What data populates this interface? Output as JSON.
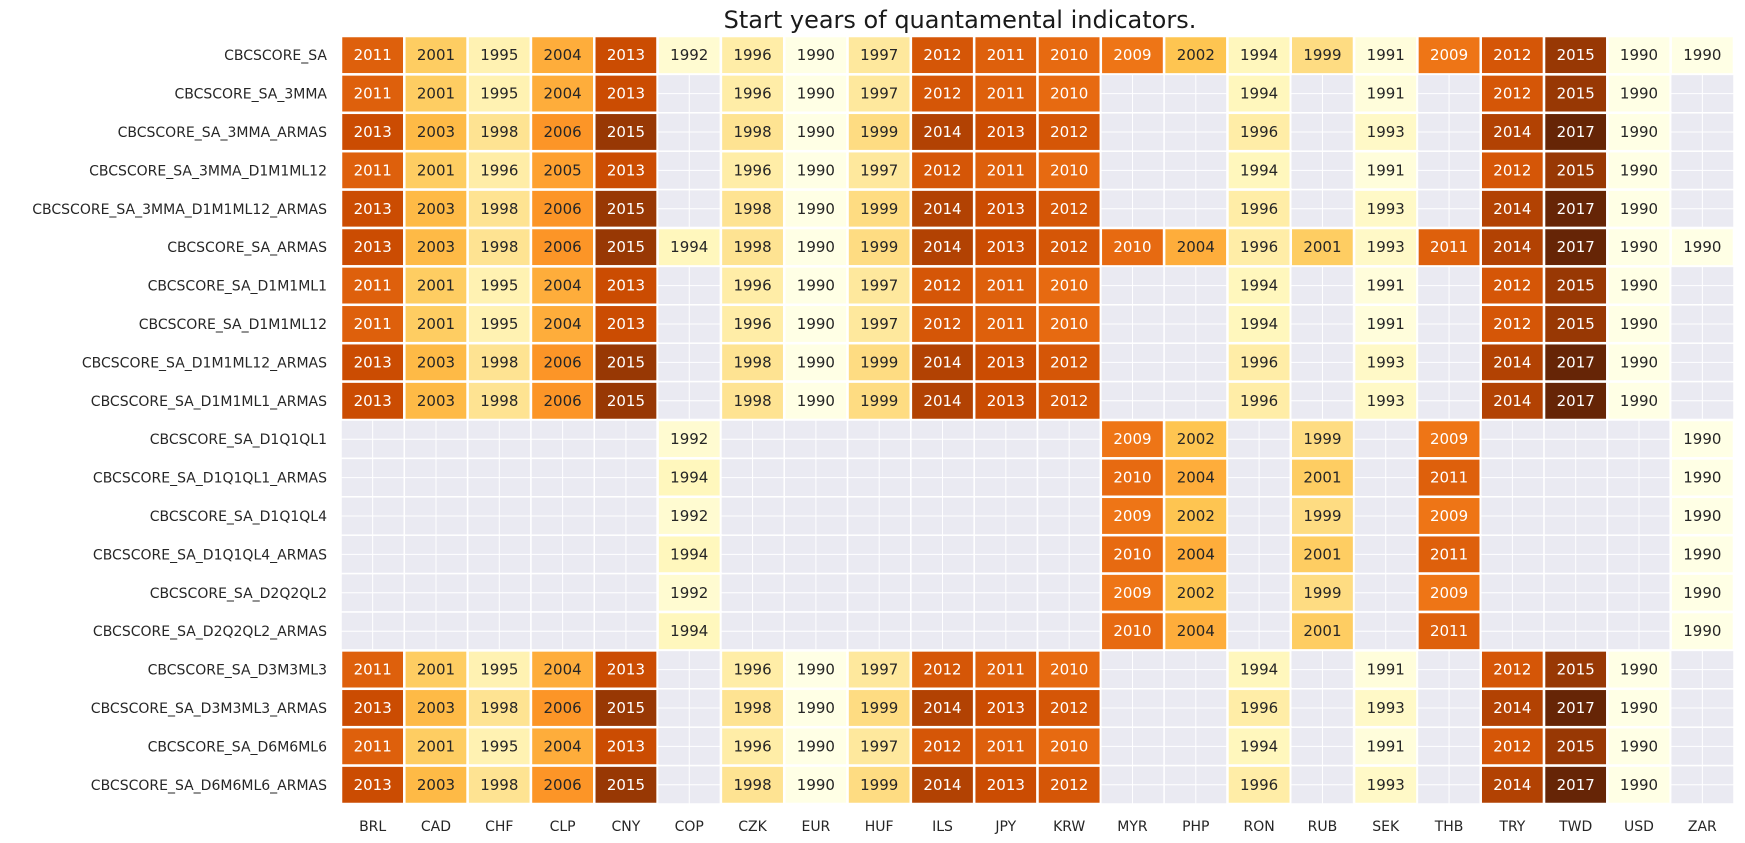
{
  "chart_data": {
    "type": "heatmap",
    "title": "Start years of quantamental indicators.",
    "xlabel": "",
    "ylabel": "",
    "colormap": "YlOrBr",
    "value_range": [
      1990,
      2017
    ],
    "grid": true,
    "columns": [
      "BRL",
      "CAD",
      "CHF",
      "CLP",
      "CNY",
      "COP",
      "CZK",
      "EUR",
      "HUF",
      "ILS",
      "JPY",
      "KRW",
      "MYR",
      "PHP",
      "RON",
      "RUB",
      "SEK",
      "THB",
      "TRY",
      "TWD",
      "USD",
      "ZAR"
    ],
    "rows": [
      "CBCSCORE_SA",
      "CBCSCORE_SA_3MMA",
      "CBCSCORE_SA_3MMA_ARMAS",
      "CBCSCORE_SA_3MMA_D1M1ML12",
      "CBCSCORE_SA_3MMA_D1M1ML12_ARMAS",
      "CBCSCORE_SA_ARMAS",
      "CBCSCORE_SA_D1M1ML1",
      "CBCSCORE_SA_D1M1ML12",
      "CBCSCORE_SA_D1M1ML12_ARMAS",
      "CBCSCORE_SA_D1M1ML1_ARMAS",
      "CBCSCORE_SA_D1Q1QL1",
      "CBCSCORE_SA_D1Q1QL1_ARMAS",
      "CBCSCORE_SA_D1Q1QL4",
      "CBCSCORE_SA_D1Q1QL4_ARMAS",
      "CBCSCORE_SA_D2Q2QL2",
      "CBCSCORE_SA_D2Q2QL2_ARMAS",
      "CBCSCORE_SA_D3M3ML3",
      "CBCSCORE_SA_D3M3ML3_ARMAS",
      "CBCSCORE_SA_D6M6ML6",
      "CBCSCORE_SA_D6M6ML6_ARMAS"
    ],
    "values": [
      [
        2011,
        2001,
        1995,
        2004,
        2013,
        1992,
        1996,
        1990,
        1997,
        2012,
        2011,
        2010,
        2009,
        2002,
        1994,
        1999,
        1991,
        2009,
        2012,
        2015,
        1990,
        1990
      ],
      [
        2011,
        2001,
        1995,
        2004,
        2013,
        null,
        1996,
        1990,
        1997,
        2012,
        2011,
        2010,
        null,
        null,
        1994,
        null,
        1991,
        null,
        2012,
        2015,
        1990,
        null
      ],
      [
        2013,
        2003,
        1998,
        2006,
        2015,
        null,
        1998,
        1990,
        1999,
        2014,
        2013,
        2012,
        null,
        null,
        1996,
        null,
        1993,
        null,
        2014,
        2017,
        1990,
        null
      ],
      [
        2011,
        2001,
        1996,
        2005,
        2013,
        null,
        1996,
        1990,
        1997,
        2012,
        2011,
        2010,
        null,
        null,
        1994,
        null,
        1991,
        null,
        2012,
        2015,
        1990,
        null
      ],
      [
        2013,
        2003,
        1998,
        2006,
        2015,
        null,
        1998,
        1990,
        1999,
        2014,
        2013,
        2012,
        null,
        null,
        1996,
        null,
        1993,
        null,
        2014,
        2017,
        1990,
        null
      ],
      [
        2013,
        2003,
        1998,
        2006,
        2015,
        1994,
        1998,
        1990,
        1999,
        2014,
        2013,
        2012,
        2010,
        2004,
        1996,
        2001,
        1993,
        2011,
        2014,
        2017,
        1990,
        1990
      ],
      [
        2011,
        2001,
        1995,
        2004,
        2013,
        null,
        1996,
        1990,
        1997,
        2012,
        2011,
        2010,
        null,
        null,
        1994,
        null,
        1991,
        null,
        2012,
        2015,
        1990,
        null
      ],
      [
        2011,
        2001,
        1995,
        2004,
        2013,
        null,
        1996,
        1990,
        1997,
        2012,
        2011,
        2010,
        null,
        null,
        1994,
        null,
        1991,
        null,
        2012,
        2015,
        1990,
        null
      ],
      [
        2013,
        2003,
        1998,
        2006,
        2015,
        null,
        1998,
        1990,
        1999,
        2014,
        2013,
        2012,
        null,
        null,
        1996,
        null,
        1993,
        null,
        2014,
        2017,
        1990,
        null
      ],
      [
        2013,
        2003,
        1998,
        2006,
        2015,
        null,
        1998,
        1990,
        1999,
        2014,
        2013,
        2012,
        null,
        null,
        1996,
        null,
        1993,
        null,
        2014,
        2017,
        1990,
        null
      ],
      [
        null,
        null,
        null,
        null,
        null,
        1992,
        null,
        null,
        null,
        null,
        null,
        null,
        2009,
        2002,
        null,
        1999,
        null,
        2009,
        null,
        null,
        null,
        1990
      ],
      [
        null,
        null,
        null,
        null,
        null,
        1994,
        null,
        null,
        null,
        null,
        null,
        null,
        2010,
        2004,
        null,
        2001,
        null,
        2011,
        null,
        null,
        null,
        1990
      ],
      [
        null,
        null,
        null,
        null,
        null,
        1992,
        null,
        null,
        null,
        null,
        null,
        null,
        2009,
        2002,
        null,
        1999,
        null,
        2009,
        null,
        null,
        null,
        1990
      ],
      [
        null,
        null,
        null,
        null,
        null,
        1994,
        null,
        null,
        null,
        null,
        null,
        null,
        2010,
        2004,
        null,
        2001,
        null,
        2011,
        null,
        null,
        null,
        1990
      ],
      [
        null,
        null,
        null,
        null,
        null,
        1992,
        null,
        null,
        null,
        null,
        null,
        null,
        2009,
        2002,
        null,
        1999,
        null,
        2009,
        null,
        null,
        null,
        1990
      ],
      [
        null,
        null,
        null,
        null,
        null,
        1994,
        null,
        null,
        null,
        null,
        null,
        null,
        2010,
        2004,
        null,
        2001,
        null,
        2011,
        null,
        null,
        null,
        1990
      ],
      [
        2011,
        2001,
        1995,
        2004,
        2013,
        null,
        1996,
        1990,
        1997,
        2012,
        2011,
        2010,
        null,
        null,
        1994,
        null,
        1991,
        null,
        2012,
        2015,
        1990,
        null
      ],
      [
        2013,
        2003,
        1998,
        2006,
        2015,
        null,
        1998,
        1990,
        1999,
        2014,
        2013,
        2012,
        null,
        null,
        1996,
        null,
        1993,
        null,
        2014,
        2017,
        1990,
        null
      ],
      [
        2011,
        2001,
        1995,
        2004,
        2013,
        null,
        1996,
        1990,
        1997,
        2012,
        2011,
        2010,
        null,
        null,
        1994,
        null,
        1991,
        null,
        2012,
        2015,
        1990,
        null
      ],
      [
        2013,
        2003,
        1998,
        2006,
        2015,
        null,
        1998,
        1990,
        1999,
        2014,
        2013,
        2012,
        null,
        null,
        1996,
        null,
        1993,
        null,
        2014,
        2017,
        1990,
        null
      ]
    ]
  },
  "colors": {
    "background": "#ffffff",
    "missing_cell": "#eaeaf2",
    "cell_border": "#ffffff",
    "dark_text": "#262626",
    "light_text": "#ffffff"
  }
}
